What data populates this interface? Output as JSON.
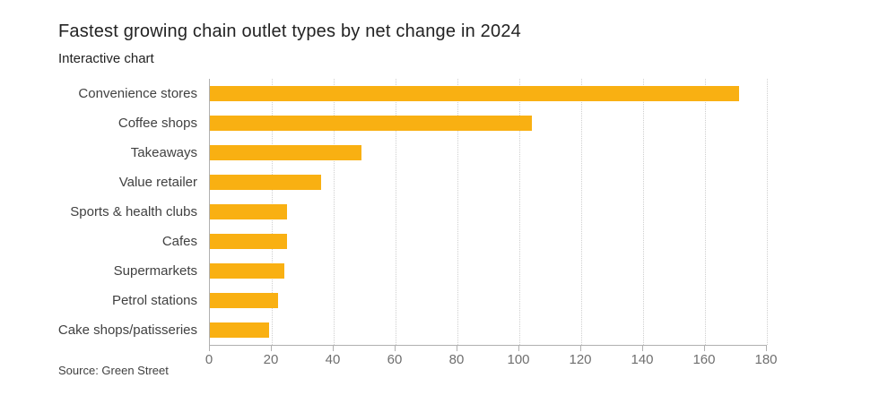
{
  "header": {
    "title": "Fastest growing chain outlet types by net change in 2024",
    "subtitle": "Interactive chart"
  },
  "footer": {
    "source": "Source: Green Street"
  },
  "colors": {
    "bar": "#F9B012",
    "axis": "#B0B0B0",
    "gridline": "#CFCFCF",
    "title_text": "#222222",
    "label_text": "#414141",
    "tick_text": "#6F6F6F"
  },
  "chart_data": {
    "type": "bar",
    "orientation": "horizontal",
    "title": "Fastest growing chain outlet types by net change in 2024",
    "subtitle": "Interactive chart",
    "source": "Source: Green Street",
    "categories": [
      "Convenience stores",
      "Coffee shops",
      "Takeaways",
      "Value retailer",
      "Sports & health clubs",
      "Cafes",
      "Supermarkets",
      "Petrol stations",
      "Cake shops/patisseries"
    ],
    "values": [
      171,
      104,
      49,
      36,
      25,
      25,
      24,
      22,
      19
    ],
    "xlabel": "",
    "ylabel": "",
    "xlim": [
      0,
      180
    ],
    "xticks": [
      0,
      20,
      40,
      60,
      80,
      100,
      120,
      140,
      160,
      180
    ],
    "grid": "vertical-dotted",
    "legend": "none"
  }
}
